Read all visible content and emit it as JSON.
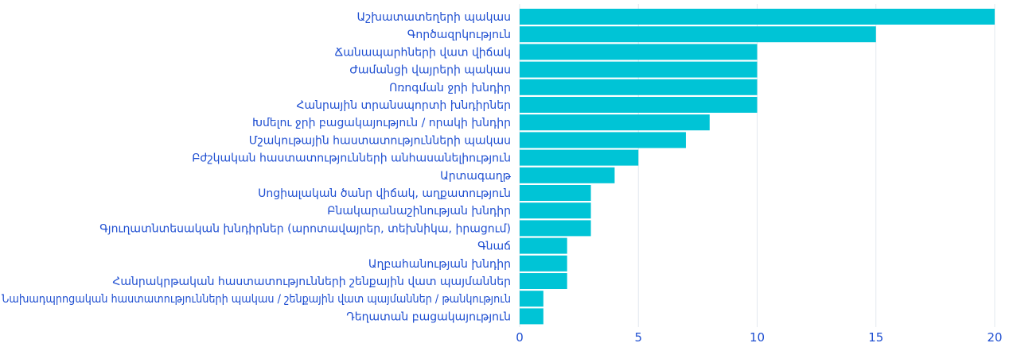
{
  "chart_data": {
    "type": "bar",
    "orientation": "horizontal",
    "categories": [
      "Աշխատատեղերի պակաս",
      "Գործազրկություն",
      "Ճանապարհների վատ վիճակ",
      "Ժամանցի վայրերի պակաս",
      "Ոռոգման ջրի խնդիր",
      "Հանրային տրանսպորտի խնդիրներ",
      "Խմելու ջրի բացակայություն / որակի խնդիր",
      "Մշակութային հաստատությունների պակաս",
      "Բժշկական հաստատությունների անհասանելիություն",
      "Արտագաղթ",
      "Սոցիալական ծանր վիճակ, աղքատություն",
      "Բնակարանաշինության խնդիր",
      "Գյուղատնտեսական խնդիրներ (արոտավայրեր, տեխնիկա, իրացում)",
      "Գնաճ",
      "Աղբահանության խնդիր",
      "Հանրակրթական հաստատությունների շենքային վատ պայմաններ",
      "Նախադպրոցական հաստատությունների պակաս / շենքային վատ պայմաններ / թանկություն",
      "Դեղատան բացակայություն"
    ],
    "values": [
      20,
      15,
      10,
      10,
      10,
      10,
      8,
      7,
      5,
      4,
      3,
      3,
      3,
      2,
      2,
      2,
      1,
      1
    ],
    "xlim": [
      0,
      20
    ],
    "xticks": [
      0,
      5,
      10,
      15,
      20
    ],
    "grid": true,
    "colors": {
      "bar": "#00c4d6",
      "label": "#1f4fd1",
      "grid": "#e3e8ef"
    }
  }
}
